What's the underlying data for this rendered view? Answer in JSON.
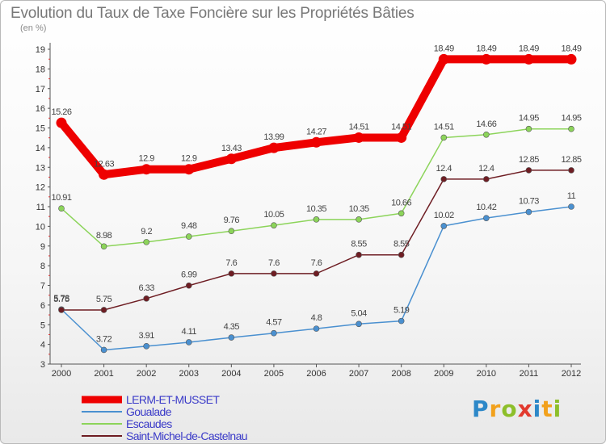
{
  "chart_data": {
    "type": "line",
    "title": "Evolution du Taux de Taxe Foncière sur les Propriétés Bâties",
    "subtitle": "(en %)",
    "x": [
      "2000",
      "2001",
      "2002",
      "2003",
      "2004",
      "2005",
      "2006",
      "2007",
      "2008",
      "2009",
      "2010",
      "2011",
      "2012"
    ],
    "ylim": [
      3,
      19
    ],
    "yticks": [
      3,
      4,
      5,
      6,
      7,
      8,
      9,
      10,
      11,
      12,
      13,
      14,
      15,
      16,
      17,
      18,
      19
    ],
    "grid": false,
    "legend_position": "bottom-left",
    "series": [
      {
        "name": "LERM-ET-MUSSET",
        "color": "#ee0000",
        "values": [
          15.26,
          12.63,
          12.9,
          12.9,
          13.43,
          13.99,
          14.27,
          14.51,
          14.51,
          18.49,
          18.49,
          18.49,
          18.49
        ],
        "labels": [
          "15.26",
          "12.63",
          "12.9",
          "12.9",
          "13.43",
          "13.99",
          "14.27",
          "14.51",
          "14.51",
          "18.49",
          "18.49",
          "18.49",
          "18.49"
        ]
      },
      {
        "name": "Goualade",
        "color": "#4a90d0",
        "values": [
          5.78,
          3.72,
          3.91,
          4.11,
          4.35,
          4.57,
          4.8,
          5.04,
          5.19,
          10.02,
          10.42,
          10.73,
          11
        ],
        "labels": [
          "5.78",
          "3.72",
          "3.91",
          "4.11",
          "4.35",
          "4.57",
          "4.8",
          "5.04",
          "5.19",
          "10.02",
          "10.42",
          "10.73",
          "11"
        ]
      },
      {
        "name": "Escaudes",
        "color": "#8cd45a",
        "values": [
          10.91,
          8.98,
          9.2,
          9.48,
          9.76,
          10.05,
          10.35,
          10.35,
          10.66,
          14.51,
          14.66,
          14.95,
          14.95
        ],
        "labels": [
          "10.91",
          "8.98",
          "9.2",
          "9.48",
          "9.76",
          "10.05",
          "10.35",
          "10.35",
          "10.66",
          "14.51",
          "14.66",
          "14.95",
          "14.95"
        ]
      },
      {
        "name": "Saint-Michel-de-Castelnau",
        "color": "#6e1d23",
        "values": [
          5.75,
          5.75,
          6.33,
          6.99,
          7.6,
          7.6,
          7.6,
          8.55,
          8.55,
          12.4,
          12.4,
          12.85,
          12.85
        ],
        "labels": [
          "5.75",
          "5.75",
          "6.33",
          "6.99",
          "7.6",
          "7.6",
          "7.6",
          "8.55",
          "8.55",
          "12.4",
          "12.4",
          "12.85",
          "12.85"
        ]
      }
    ]
  },
  "logo": {
    "letters": [
      "P",
      "r",
      "o",
      "x",
      "i",
      "t",
      "i"
    ]
  }
}
